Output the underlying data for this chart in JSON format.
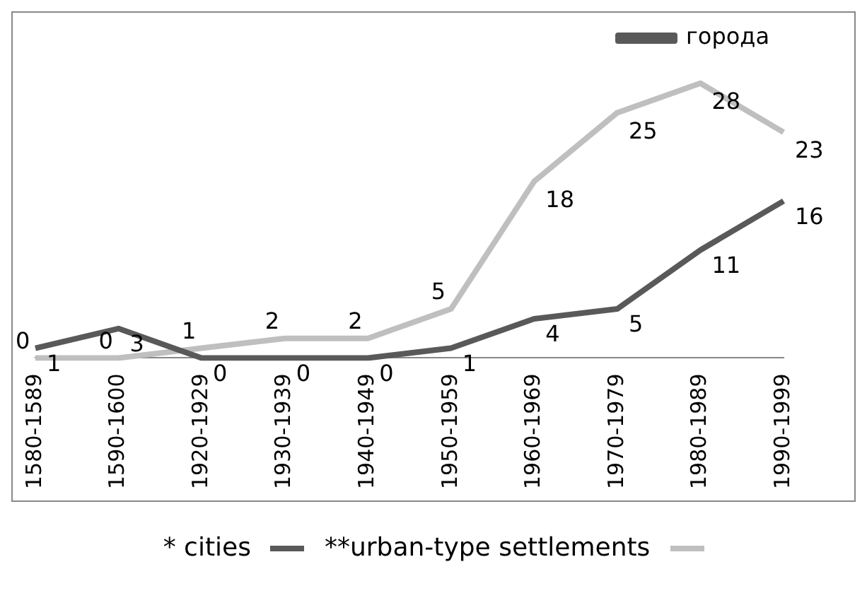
{
  "chart_data": {
    "type": "line",
    "categories": [
      "1580-1589",
      "1590-1600",
      "1920-1929",
      "1930-1939",
      "1940-1949",
      "1950-1959",
      "1960-1969",
      "1970-1979",
      "1980-1989",
      "1990-1999"
    ],
    "series": [
      {
        "name": "города",
        "color": "#595959",
        "values": [
          1,
          3,
          0,
          0,
          0,
          1,
          4,
          5,
          11,
          16
        ]
      },
      {
        "color": "#bfbfbf",
        "values": [
          0,
          0,
          1,
          2,
          2,
          5,
          18,
          25,
          28,
          23
        ]
      }
    ],
    "data_labels": true,
    "legend": "top",
    "grid": false,
    "tick_labels": "x",
    "marker": "none",
    "line_style": "solid",
    "annotations": [
      "* cities",
      "**urban-type settlements"
    ]
  }
}
